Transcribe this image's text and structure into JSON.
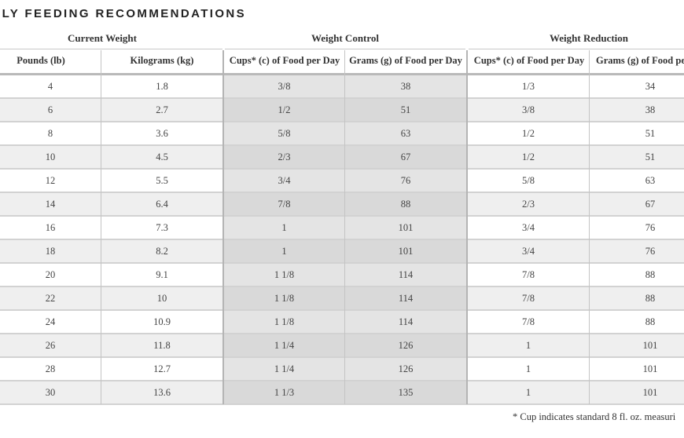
{
  "title": "ILY FEEDING RECOMMENDATIONS",
  "groups": {
    "current_weight": "Current Weight",
    "weight_control": "Weight Control",
    "weight_reduction": "Weight Reduction"
  },
  "columns": [
    "Pounds (lb)",
    "Kilograms (kg)",
    "Cups* (c) of Food per Day",
    "Grams (g) of Food per Day",
    "Cups* (c) of Food per Day",
    "Grams (g) of Food per"
  ],
  "rows": [
    [
      "4",
      "1.8",
      "3/8",
      "38",
      "1/3",
      "34"
    ],
    [
      "6",
      "2.7",
      "1/2",
      "51",
      "3/8",
      "38"
    ],
    [
      "8",
      "3.6",
      "5/8",
      "63",
      "1/2",
      "51"
    ],
    [
      "10",
      "4.5",
      "2/3",
      "67",
      "1/2",
      "51"
    ],
    [
      "12",
      "5.5",
      "3/4",
      "76",
      "5/8",
      "63"
    ],
    [
      "14",
      "6.4",
      "7/8",
      "88",
      "2/3",
      "67"
    ],
    [
      "16",
      "7.3",
      "1",
      "101",
      "3/4",
      "76"
    ],
    [
      "18",
      "8.2",
      "1",
      "101",
      "3/4",
      "76"
    ],
    [
      "20",
      "9.1",
      "1 1/8",
      "114",
      "7/8",
      "88"
    ],
    [
      "22",
      "10",
      "1 1/8",
      "114",
      "7/8",
      "88"
    ],
    [
      "24",
      "10.9",
      "1 1/8",
      "114",
      "7/8",
      "88"
    ],
    [
      "26",
      "11.8",
      "1 1/4",
      "126",
      "1",
      "101"
    ],
    [
      "28",
      "12.7",
      "1 1/4",
      "126",
      "1",
      "101"
    ],
    [
      "30",
      "13.6",
      "1 1/3",
      "135",
      "1",
      "101"
    ]
  ],
  "footnote": "* Cup indicates standard 8 fl. oz. measuri"
}
